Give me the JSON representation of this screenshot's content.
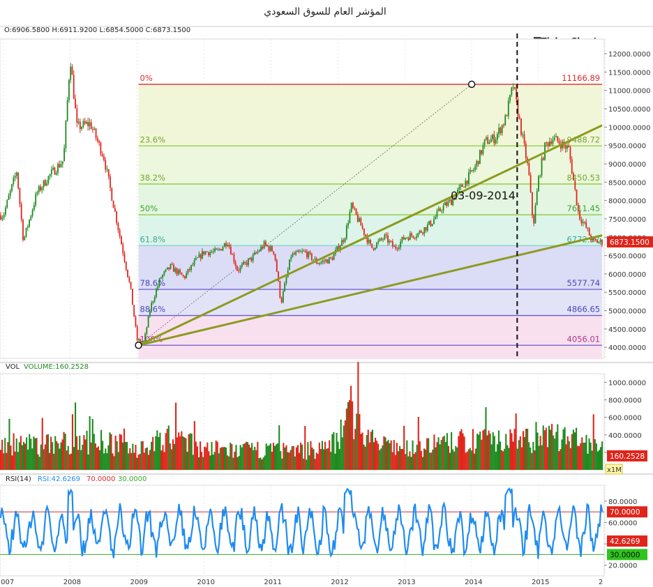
{
  "title": "المؤشر العام للسوق السعودي",
  "brand": "TickerChart",
  "ohlc_label": "O:6906.5800 H:6911.9200 L:6854.5000 C:6873.1500",
  "volume_label": "VOL",
  "volume_value_label": "VOLUME:160.2528",
  "volume_unit": "x1M",
  "rsi_label": "RSI(14)",
  "rsi_value_label": "RSI:42.6269",
  "rsi_upper_label": "70.0000",
  "rsi_lower_label": "30.0000",
  "event_date_label": "03-09-2014",
  "colors": {
    "up": "#1e8a1e",
    "down": "#e0251b",
    "rsi_line": "#1e8cf0",
    "trend_line": "#8c9a1e",
    "fib_line_red": "#d92b2b",
    "fib_line_green": "#8ccc3c",
    "fib_line_blue": "#6a5acd"
  },
  "chart_data": [
    {
      "type": "candlestick",
      "x_axis": {
        "ticks": [
          "2007",
          "2008",
          "2009",
          "2010",
          "2011",
          "2012",
          "2013",
          "2014",
          "2015",
          "2"
        ]
      },
      "y_axis": {
        "ylim": [
          3700,
          12400
        ],
        "ticks": [
          "12000.0000",
          "11500.0000",
          "11000.0000",
          "10500.0000",
          "10000.0000",
          "9500.0000",
          "9000.0000",
          "8500.0000",
          "8000.0000",
          "7500.0000",
          "7000.0000",
          "6500.0000",
          "6000.0000",
          "5500.0000",
          "5000.0000",
          "4500.0000",
          "4000.0000"
        ]
      },
      "last_price_label": "6873.1500",
      "anchors": [
        [
          2007.0,
          7600
        ],
        [
          2007.2,
          8800
        ],
        [
          2007.3,
          6900
        ],
        [
          2007.5,
          8200
        ],
        [
          2007.7,
          8700
        ],
        [
          2007.9,
          9100
        ],
        [
          2008.0,
          11900
        ],
        [
          2008.1,
          10000
        ],
        [
          2008.3,
          10100
        ],
        [
          2008.5,
          9200
        ],
        [
          2008.7,
          7400
        ],
        [
          2008.9,
          5600
        ],
        [
          2009.0,
          4200
        ],
        [
          2009.1,
          4130
        ],
        [
          2009.2,
          5100
        ],
        [
          2009.35,
          5900
        ],
        [
          2009.5,
          6200
        ],
        [
          2009.7,
          5900
        ],
        [
          2009.85,
          6300
        ],
        [
          2010.0,
          6600
        ],
        [
          2010.2,
          6600
        ],
        [
          2010.35,
          6900
        ],
        [
          2010.5,
          6100
        ],
        [
          2010.7,
          6400
        ],
        [
          2010.9,
          6800
        ],
        [
          2011.05,
          6600
        ],
        [
          2011.15,
          5200
        ],
        [
          2011.3,
          6500
        ],
        [
          2011.5,
          6600
        ],
        [
          2011.7,
          6300
        ],
        [
          2011.9,
          6400
        ],
        [
          2012.1,
          7000
        ],
        [
          2012.2,
          7850
        ],
        [
          2012.35,
          7300
        ],
        [
          2012.5,
          6700
        ],
        [
          2012.7,
          7000
        ],
        [
          2012.85,
          6700
        ],
        [
          2013.0,
          7000
        ],
        [
          2013.2,
          7100
        ],
        [
          2013.4,
          7400
        ],
        [
          2013.55,
          7800
        ],
        [
          2013.7,
          8000
        ],
        [
          2013.9,
          8500
        ],
        [
          2014.05,
          8900
        ],
        [
          2014.2,
          9600
        ],
        [
          2014.35,
          9700
        ],
        [
          2014.5,
          10200
        ],
        [
          2014.62,
          11140
        ],
        [
          2014.75,
          9800
        ],
        [
          2014.85,
          8800
        ],
        [
          2014.92,
          7300
        ],
        [
          2015.0,
          8600
        ],
        [
          2015.1,
          9500
        ],
        [
          2015.2,
          9700
        ],
        [
          2015.3,
          9600
        ],
        [
          2015.45,
          9400
        ],
        [
          2015.6,
          7600
        ],
        [
          2015.7,
          7300
        ],
        [
          2015.8,
          6900
        ],
        [
          2015.9,
          6870
        ]
      ],
      "fibonacci": [
        {
          "label": "0%",
          "value": "11166.89",
          "price": 11166.89
        },
        {
          "label": "23.6%",
          "value": "9488.72",
          "price": 9488.72
        },
        {
          "label": "38.2%",
          "value": "8450.53",
          "price": 8450.53
        },
        {
          "label": "50%",
          "value": "7611.45",
          "price": 7611.45
        },
        {
          "label": "61.8%",
          "value": "6772.37",
          "price": 6772.37
        },
        {
          "label": "78.6%",
          "value": "5577.74",
          "price": 5577.74
        },
        {
          "label": "88.6%",
          "value": "4866.65",
          "price": 4866.65
        },
        {
          "label": "100%",
          "value": "4056.01",
          "price": 4056.01
        }
      ],
      "event_line_x": 2014.68,
      "fib_range_x": [
        2009.02,
        2015.95
      ],
      "anchor_points": [
        [
          2009.02,
          4056.01
        ],
        [
          2014.0,
          11166.89
        ]
      ],
      "trend_lines": [
        {
          "from": [
            2009.02,
            4056.01
          ],
          "to": [
            2015.95,
            10050
          ]
        },
        {
          "from": [
            2009.02,
            4056.01
          ],
          "to": [
            2015.95,
            7050
          ]
        }
      ]
    },
    {
      "type": "bar",
      "name": "VOL",
      "ylim": [
        0,
        1100
      ],
      "y_ticks": [
        "1000.0000",
        "800.0000",
        "600.0000",
        "400.0000",
        "200.0000"
      ],
      "last_value_label": "160.2528",
      "anchors": [
        [
          2007.0,
          310
        ],
        [
          2007.5,
          290
        ],
        [
          2008.0,
          340
        ],
        [
          2008.5,
          330
        ],
        [
          2009.0,
          260
        ],
        [
          2009.5,
          380
        ],
        [
          2010.0,
          250
        ],
        [
          2010.5,
          230
        ],
        [
          2011.0,
          240
        ],
        [
          2011.5,
          230
        ],
        [
          2011.9,
          280
        ],
        [
          2012.1,
          560
        ],
        [
          2012.2,
          740
        ],
        [
          2012.35,
          460
        ],
        [
          2012.6,
          300
        ],
        [
          2013.0,
          250
        ],
        [
          2013.5,
          300
        ],
        [
          2014.0,
          350
        ],
        [
          2014.3,
          420
        ],
        [
          2014.6,
          330
        ],
        [
          2014.8,
          360
        ],
        [
          2015.0,
          400
        ],
        [
          2015.3,
          390
        ],
        [
          2015.6,
          350
        ],
        [
          2015.9,
          260
        ]
      ]
    },
    {
      "type": "line",
      "name": "RSI",
      "ylim": [
        10,
        95
      ],
      "y_ticks": [
        "80.0000",
        "60.0000",
        "40.0000",
        "20.0000"
      ],
      "last_value_label": "42.6269",
      "upper": 70,
      "lower": 30
    }
  ]
}
